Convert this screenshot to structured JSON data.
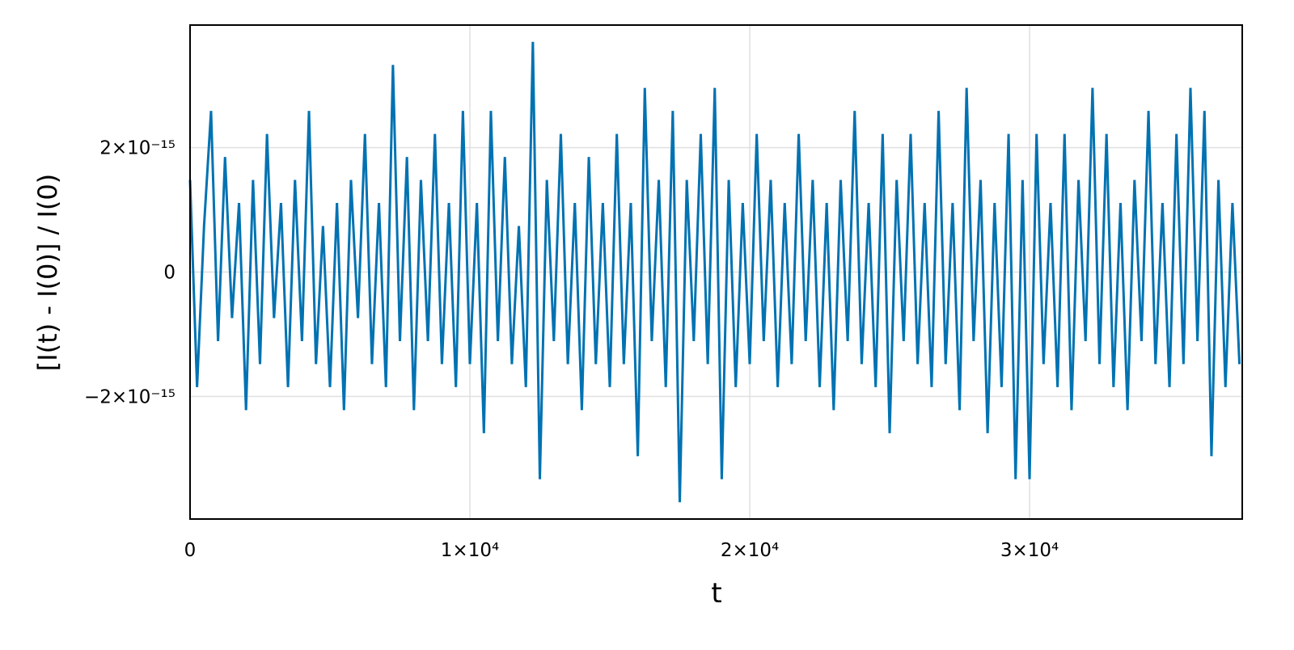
{
  "chart_data": {
    "type": "line",
    "xlabel": "t",
    "ylabel": "[I(t) - I(0)] / I(0)",
    "xlim": [
      0,
      37600
    ],
    "ylim": [
      -3.97e-15,
      3.97e-15
    ],
    "xticks": [
      0,
      {
        "value": 10000,
        "label": "1×10⁴"
      },
      {
        "value": 20000,
        "label": "2×10⁴"
      },
      {
        "value": 30000,
        "label": "3×10⁴"
      }
    ],
    "yticks": [
      {
        "value": -2e-15,
        "label": "−2×10⁻¹⁵"
      },
      0,
      {
        "value": 2e-15,
        "label": "2×10⁻¹⁵"
      }
    ],
    "grid": true,
    "x": [
      0,
      250,
      500,
      750,
      1000,
      1250,
      1500,
      1750,
      2000,
      2250,
      2500,
      2750,
      3000,
      3250,
      3500,
      3750,
      4000,
      4250,
      4500,
      4750,
      5000,
      5250,
      5500,
      5750,
      6000,
      6250,
      6500,
      6750,
      7000,
      7250,
      7500,
      7750,
      8000,
      8250,
      8500,
      8750,
      9000,
      9250,
      9500,
      9750,
      10000,
      10250,
      10500,
      10750,
      11000,
      11250,
      11500,
      11750,
      12000,
      12250,
      12500,
      12750,
      13000,
      13250,
      13500,
      13750,
      14000,
      14250,
      14500,
      14750,
      15000,
      15250,
      15500,
      15750,
      16000,
      16250,
      16500,
      16750,
      17000,
      17250,
      17500,
      17750,
      18000,
      18250,
      18500,
      18750,
      19000,
      19250,
      19500,
      19750,
      20000,
      20250,
      20500,
      20750,
      21000,
      21250,
      21500,
      21750,
      22000,
      22250,
      22500,
      22750,
      23000,
      23250,
      23500,
      23750,
      24000,
      24250,
      24500,
      24750,
      25000,
      25250,
      25500,
      25750,
      26000,
      26250,
      26500,
      26750,
      27000,
      27250,
      27500,
      27750,
      28000,
      28250,
      28500,
      28750,
      29000,
      29250,
      29500,
      29750,
      30000,
      30250,
      30500,
      30750,
      31000,
      31250,
      31500,
      31750,
      32000,
      32250,
      32500,
      32750,
      33000,
      33250,
      33500,
      33750,
      34000,
      34250,
      34500,
      34750,
      35000,
      35250,
      35500,
      35750,
      36000,
      36250,
      36500,
      36750,
      37000,
      37250,
      37500
    ],
    "series": [
      {
        "color": "#0072b2",
        "values": [
          1.48e-15,
          -1.85e-15,
          7.4e-16,
          2.59e-15,
          -1.11e-15,
          1.85e-15,
          -7.4e-16,
          1.11e-15,
          -2.22e-15,
          1.48e-15,
          -1.48e-15,
          2.22e-15,
          -7.4e-16,
          1.11e-15,
          -1.85e-15,
          1.48e-15,
          -1.11e-15,
          2.59e-15,
          -1.48e-15,
          7.4e-16,
          -1.85e-15,
          1.11e-15,
          -2.22e-15,
          1.48e-15,
          -7.4e-16,
          2.22e-15,
          -1.48e-15,
          1.11e-15,
          -1.85e-15,
          3.33e-15,
          -1.11e-15,
          1.85e-15,
          -2.22e-15,
          1.48e-15,
          -1.11e-15,
          2.22e-15,
          -1.48e-15,
          1.11e-15,
          -1.85e-15,
          2.59e-15,
          -1.48e-15,
          1.11e-15,
          -2.59e-15,
          2.59e-15,
          -1.11e-15,
          1.85e-15,
          -1.48e-15,
          7.4e-16,
          -1.85e-15,
          3.7e-15,
          -3.33e-15,
          1.48e-15,
          -1.11e-15,
          2.22e-15,
          -1.48e-15,
          1.11e-15,
          -2.22e-15,
          1.85e-15,
          -1.48e-15,
          1.11e-15,
          -1.85e-15,
          2.22e-15,
          -1.48e-15,
          1.11e-15,
          -2.96e-15,
          2.96e-15,
          -1.11e-15,
          1.48e-15,
          -1.85e-15,
          2.59e-15,
          -3.7e-15,
          1.48e-15,
          -1.11e-15,
          2.22e-15,
          -1.48e-15,
          2.96e-15,
          -3.33e-15,
          1.48e-15,
          -1.85e-15,
          1.11e-15,
          -1.48e-15,
          2.22e-15,
          -1.11e-15,
          1.48e-15,
          -1.85e-15,
          1.11e-15,
          -1.48e-15,
          2.22e-15,
          -1.11e-15,
          1.48e-15,
          -1.85e-15,
          1.11e-15,
          -2.22e-15,
          1.48e-15,
          -1.11e-15,
          2.59e-15,
          -1.48e-15,
          1.11e-15,
          -1.85e-15,
          2.22e-15,
          -2.59e-15,
          1.48e-15,
          -1.11e-15,
          2.22e-15,
          -1.48e-15,
          1.11e-15,
          -1.85e-15,
          2.59e-15,
          -1.48e-15,
          1.11e-15,
          -2.22e-15,
          2.96e-15,
          -1.11e-15,
          1.48e-15,
          -2.59e-15,
          1.11e-15,
          -1.85e-15,
          2.22e-15,
          -3.33e-15,
          1.48e-15,
          -3.33e-15,
          2.22e-15,
          -1.48e-15,
          1.11e-15,
          -1.85e-15,
          2.22e-15,
          -2.22e-15,
          1.48e-15,
          -1.11e-15,
          2.96e-15,
          -1.48e-15,
          2.22e-15,
          -1.85e-15,
          1.11e-15,
          -2.22e-15,
          1.48e-15,
          -1.11e-15,
          2.59e-15,
          -1.48e-15,
          1.11e-15,
          -1.85e-15,
          2.22e-15,
          -1.48e-15,
          2.96e-15,
          -1.11e-15,
          2.59e-15,
          -2.96e-15,
          1.48e-15,
          -1.85e-15,
          1.11e-15,
          -1.48e-15
        ]
      }
    ]
  }
}
